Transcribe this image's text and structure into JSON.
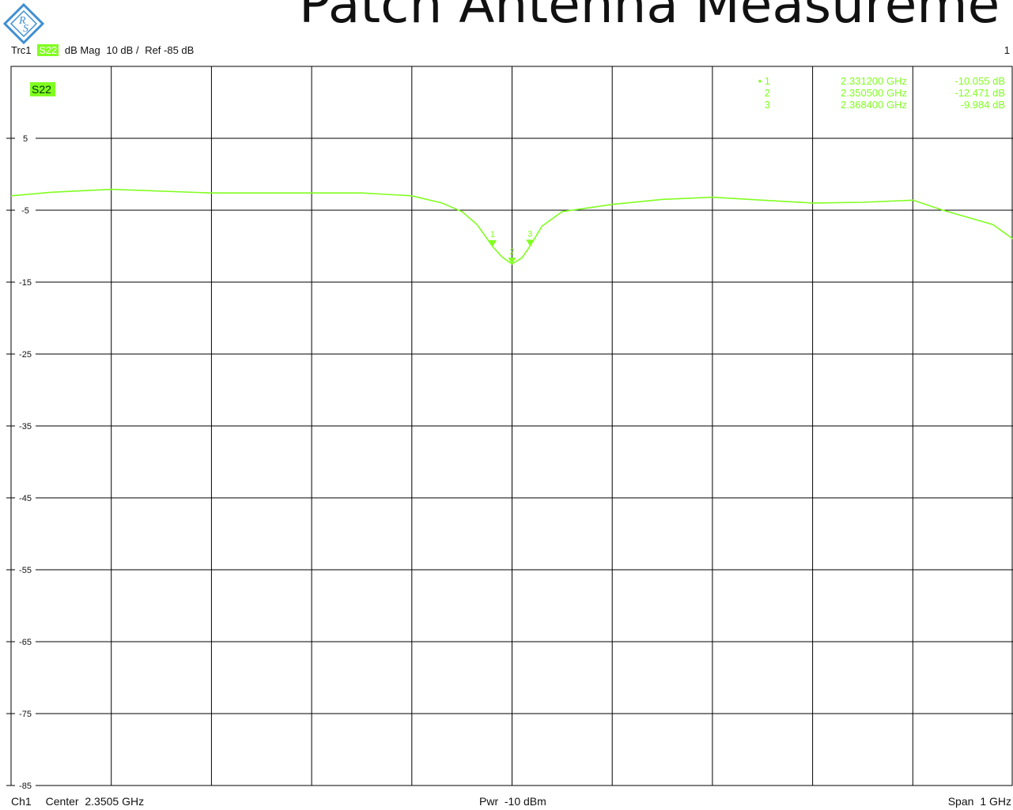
{
  "slide": {
    "title": "Patch Antenna Measureme"
  },
  "header": {
    "trace": "Trc1",
    "parameter": "S22",
    "format": "dB Mag",
    "scale": "10 dB /",
    "reference": "Ref -85 dB",
    "channel_number": "1"
  },
  "footer": {
    "channel": "Ch1",
    "center": "Center  2.3505 GHz",
    "power": "Pwr  -10 dBm",
    "span_label": "Span",
    "span_value": "1 GHz"
  },
  "colors": {
    "trace": "#80ff20",
    "grid": "#000000",
    "background": "#ffffff",
    "logo": "#3f8fd2"
  },
  "chart_data": {
    "type": "line",
    "title": "",
    "trace_label": "S22",
    "x_unit": "GHz",
    "xlim": [
      1.8505,
      2.8505
    ],
    "ylim": [
      -85,
      15
    ],
    "yticks": [
      5,
      -5,
      -15,
      -25,
      -35,
      -45,
      -55,
      -65,
      -75,
      -85
    ],
    "grid": true,
    "series": [
      {
        "name": "S22",
        "x": [
          1.8505,
          1.8905,
          1.9505,
          2.0505,
          2.1505,
          2.2005,
          2.2505,
          2.2805,
          2.3005,
          2.3155,
          2.3312,
          2.3405,
          2.3505,
          2.3605,
          2.3684,
          2.3805,
          2.4005,
          2.4505,
          2.5005,
          2.5505,
          2.6005,
          2.6505,
          2.7005,
          2.7505,
          2.7805,
          2.8305,
          2.8505
        ],
        "y": [
          -3.0,
          -2.5,
          -2.1,
          -2.6,
          -2.6,
          -2.6,
          -3.0,
          -4.0,
          -5.2,
          -7.0,
          -10.055,
          -11.5,
          -12.471,
          -11.6,
          -9.984,
          -7.2,
          -5.2,
          -4.2,
          -3.5,
          -3.2,
          -3.6,
          -4.0,
          -3.9,
          -3.6,
          -5.0,
          -7.0,
          -9.0
        ]
      }
    ],
    "markers": [
      {
        "label": "1",
        "freq": "2.331200 GHz",
        "value": "-10.055  dB",
        "x": 2.3312,
        "y": -10.055,
        "active": true
      },
      {
        "label": "2",
        "freq": "2.350500 GHz",
        "value": "-12.471  dB",
        "x": 2.3505,
        "y": -12.471,
        "active": false
      },
      {
        "label": "3",
        "freq": "2.368400 GHz",
        "value": "-9.984  dB",
        "x": 2.3684,
        "y": -9.984,
        "active": false
      }
    ]
  }
}
